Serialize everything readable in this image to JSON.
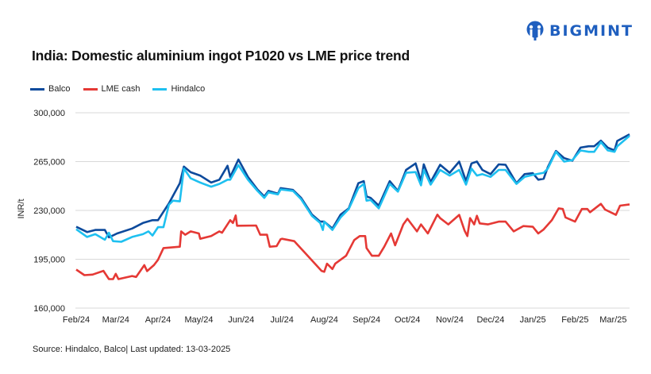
{
  "brand": {
    "name": "BIGMINT",
    "color": "#1f5fbf"
  },
  "title": "India: Domestic aluminium ingot P1020 vs LME price trend",
  "source": "Source: Hindalco, Balco| Last updated: 13-03-2025",
  "chart_data": {
    "type": "line",
    "title": "India: Domestic aluminium ingot P1020 vs LME price trend",
    "xlabel": "",
    "ylabel": "INR/t",
    "ylim": [
      160000,
      300000
    ],
    "yticks": [
      "300,000",
      "265,000",
      "230,000",
      "195,000",
      "160,000"
    ],
    "ytick_values": [
      300000,
      265000,
      230000,
      195000,
      160000
    ],
    "xlim": [
      "2024-02-01",
      "2025-03-13"
    ],
    "xticks": [
      "Feb/24",
      "Mar/24",
      "Apr/24",
      "May/24",
      "Jun/24",
      "Jul/24",
      "Aug/24",
      "Sep/24",
      "Oct/24",
      "Nov/24",
      "Dec/24",
      "Jan/25",
      "Feb/25",
      "Mar/25"
    ],
    "xtick_dates": [
      "2024-02-01",
      "2024-03-01",
      "2024-04-01",
      "2024-05-01",
      "2024-06-01",
      "2024-07-01",
      "2024-08-01",
      "2024-09-01",
      "2024-10-01",
      "2024-11-01",
      "2024-12-01",
      "2025-01-01",
      "2025-02-01",
      "2025-03-01"
    ],
    "grid": "horizontal",
    "legend_position": "top-left",
    "series": [
      {
        "name": "Balco",
        "color": "#0d4a9c",
        "points": [
          [
            "2024-02-01",
            218300
          ],
          [
            "2024-02-09",
            214500
          ],
          [
            "2024-02-15",
            216000
          ],
          [
            "2024-02-22",
            216000
          ],
          [
            "2024-02-25",
            210700
          ],
          [
            "2024-03-02",
            213500
          ],
          [
            "2024-03-13",
            217000
          ],
          [
            "2024-03-21",
            221000
          ],
          [
            "2024-03-28",
            223000
          ],
          [
            "2024-04-01",
            223000
          ],
          [
            "2024-04-09",
            235000
          ],
          [
            "2024-04-17",
            249500
          ],
          [
            "2024-04-20",
            261400
          ],
          [
            "2024-04-25",
            257400
          ],
          [
            "2024-05-02",
            255000
          ],
          [
            "2024-05-10",
            250000
          ],
          [
            "2024-05-16",
            252000
          ],
          [
            "2024-05-22",
            262000
          ],
          [
            "2024-05-24",
            254000
          ],
          [
            "2024-05-30",
            266500
          ],
          [
            "2024-06-06",
            254000
          ],
          [
            "2024-06-13",
            245000
          ],
          [
            "2024-06-18",
            240000
          ],
          [
            "2024-06-21",
            244000
          ],
          [
            "2024-06-28",
            242000
          ],
          [
            "2024-06-30",
            246000
          ],
          [
            "2024-07-09",
            244700
          ],
          [
            "2024-07-15",
            239000
          ],
          [
            "2024-07-23",
            227000
          ],
          [
            "2024-07-29",
            222000
          ],
          [
            "2024-08-01",
            222000
          ],
          [
            "2024-08-07",
            217000
          ],
          [
            "2024-08-13",
            227000
          ],
          [
            "2024-08-19",
            231500
          ],
          [
            "2024-08-26",
            249500
          ],
          [
            "2024-08-30",
            251000
          ],
          [
            "2024-09-01",
            240000
          ],
          [
            "2024-09-04",
            239000
          ],
          [
            "2024-09-10",
            233400
          ],
          [
            "2024-09-18",
            251000
          ],
          [
            "2024-09-24",
            244000
          ],
          [
            "2024-09-30",
            259000
          ],
          [
            "2024-10-07",
            263700
          ],
          [
            "2024-10-11",
            251000
          ],
          [
            "2024-10-13",
            263000
          ],
          [
            "2024-10-18",
            250400
          ],
          [
            "2024-10-25",
            262700
          ],
          [
            "2024-11-01",
            257000
          ],
          [
            "2024-11-08",
            265000
          ],
          [
            "2024-11-13",
            251000
          ],
          [
            "2024-11-17",
            263700
          ],
          [
            "2024-11-21",
            265000
          ],
          [
            "2024-11-25",
            259000
          ],
          [
            "2024-12-01",
            256000
          ],
          [
            "2024-12-07",
            263000
          ],
          [
            "2024-12-12",
            262700
          ],
          [
            "2024-12-20",
            249500
          ],
          [
            "2024-12-26",
            256000
          ],
          [
            "2025-01-01",
            256700
          ],
          [
            "2025-01-05",
            252000
          ],
          [
            "2025-01-09",
            252700
          ],
          [
            "2025-01-12",
            261000
          ],
          [
            "2025-01-18",
            272600
          ],
          [
            "2025-01-24",
            267500
          ],
          [
            "2025-01-30",
            265600
          ],
          [
            "2025-02-05",
            275000
          ],
          [
            "2025-02-11",
            276000
          ],
          [
            "2025-02-15",
            276000
          ],
          [
            "2025-02-20",
            280000
          ],
          [
            "2025-02-25",
            275000
          ],
          [
            "2025-03-02",
            273000
          ],
          [
            "2025-03-04",
            279800
          ],
          [
            "2025-03-13",
            284500
          ]
        ]
      },
      {
        "name": "LME cash",
        "color": "#e53935",
        "points": [
          [
            "2024-02-01",
            187600
          ],
          [
            "2024-02-07",
            183600
          ],
          [
            "2024-02-13",
            184000
          ],
          [
            "2024-02-21",
            186700
          ],
          [
            "2024-02-25",
            180800
          ],
          [
            "2024-02-28",
            180800
          ],
          [
            "2024-03-01",
            184600
          ],
          [
            "2024-03-03",
            180800
          ],
          [
            "2024-03-13",
            183000
          ],
          [
            "2024-03-16",
            182300
          ],
          [
            "2024-03-22",
            190800
          ],
          [
            "2024-03-24",
            186500
          ],
          [
            "2024-03-29",
            190800
          ],
          [
            "2024-04-01",
            194600
          ],
          [
            "2024-04-05",
            203000
          ],
          [
            "2024-04-17",
            204000
          ],
          [
            "2024-04-18",
            215000
          ],
          [
            "2024-04-21",
            212600
          ],
          [
            "2024-04-25",
            215000
          ],
          [
            "2024-05-01",
            213500
          ],
          [
            "2024-05-02",
            209700
          ],
          [
            "2024-05-10",
            211600
          ],
          [
            "2024-05-16",
            215000
          ],
          [
            "2024-05-18",
            214000
          ],
          [
            "2024-05-24",
            223000
          ],
          [
            "2024-05-26",
            221000
          ],
          [
            "2024-05-28",
            226400
          ],
          [
            "2024-05-29",
            219000
          ],
          [
            "2024-06-12",
            219200
          ],
          [
            "2024-06-15",
            212600
          ],
          [
            "2024-06-20",
            212600
          ],
          [
            "2024-06-22",
            204000
          ],
          [
            "2024-06-27",
            204400
          ],
          [
            "2024-06-30",
            209400
          ],
          [
            "2024-07-01",
            209700
          ],
          [
            "2024-07-10",
            208000
          ],
          [
            "2024-07-15",
            202600
          ],
          [
            "2024-07-19",
            198400
          ],
          [
            "2024-07-30",
            186700
          ],
          [
            "2024-08-01",
            186000
          ],
          [
            "2024-08-03",
            191800
          ],
          [
            "2024-08-07",
            188000
          ],
          [
            "2024-08-09",
            191800
          ],
          [
            "2024-08-17",
            197500
          ],
          [
            "2024-08-23",
            208800
          ],
          [
            "2024-08-27",
            211600
          ],
          [
            "2024-08-31",
            211600
          ],
          [
            "2024-09-01",
            203000
          ],
          [
            "2024-09-05",
            197500
          ],
          [
            "2024-09-10",
            197500
          ],
          [
            "2024-09-14",
            204000
          ],
          [
            "2024-09-19",
            213500
          ],
          [
            "2024-09-22",
            205000
          ],
          [
            "2024-09-28",
            220000
          ],
          [
            "2024-10-01",
            224000
          ],
          [
            "2024-10-08",
            215000
          ],
          [
            "2024-10-11",
            220000
          ],
          [
            "2024-10-16",
            213500
          ],
          [
            "2024-10-23",
            227000
          ],
          [
            "2024-10-25",
            224500
          ],
          [
            "2024-10-31",
            220000
          ],
          [
            "2024-11-08",
            226800
          ],
          [
            "2024-11-12",
            215400
          ],
          [
            "2024-11-14",
            211600
          ],
          [
            "2024-11-16",
            224500
          ],
          [
            "2024-11-19",
            220000
          ],
          [
            "2024-11-21",
            226200
          ],
          [
            "2024-11-23",
            220700
          ],
          [
            "2024-11-29",
            220000
          ],
          [
            "2024-12-07",
            222000
          ],
          [
            "2024-12-12",
            222000
          ],
          [
            "2024-12-18",
            215000
          ],
          [
            "2024-12-25",
            218800
          ],
          [
            "2025-01-01",
            218300
          ],
          [
            "2025-01-05",
            213500
          ],
          [
            "2025-01-09",
            216400
          ],
          [
            "2025-01-15",
            223000
          ],
          [
            "2025-01-20",
            231500
          ],
          [
            "2025-01-23",
            231000
          ],
          [
            "2025-01-25",
            225000
          ],
          [
            "2025-02-01",
            222000
          ],
          [
            "2025-02-06",
            231000
          ],
          [
            "2025-02-10",
            231000
          ],
          [
            "2025-02-12",
            228700
          ],
          [
            "2025-02-20",
            234700
          ],
          [
            "2025-02-23",
            230600
          ],
          [
            "2025-03-03",
            226800
          ],
          [
            "2025-03-06",
            233400
          ],
          [
            "2025-03-13",
            234300
          ]
        ]
      },
      {
        "name": "Hindalco",
        "color": "#1ec0f0",
        "points": [
          [
            "2024-02-01",
            216500
          ],
          [
            "2024-02-09",
            211000
          ],
          [
            "2024-02-15",
            213000
          ],
          [
            "2024-02-22",
            209000
          ],
          [
            "2024-02-25",
            214000
          ],
          [
            "2024-02-28",
            208000
          ],
          [
            "2024-03-05",
            207500
          ],
          [
            "2024-03-13",
            211000
          ],
          [
            "2024-03-21",
            213000
          ],
          [
            "2024-03-25",
            215000
          ],
          [
            "2024-03-28",
            212000
          ],
          [
            "2024-04-01",
            218000
          ],
          [
            "2024-04-05",
            218000
          ],
          [
            "2024-04-09",
            234000
          ],
          [
            "2024-04-12",
            237000
          ],
          [
            "2024-04-17",
            236500
          ],
          [
            "2024-04-20",
            260000
          ],
          [
            "2024-04-25",
            253000
          ],
          [
            "2024-05-02",
            250000
          ],
          [
            "2024-05-10",
            247000
          ],
          [
            "2024-05-16",
            249000
          ],
          [
            "2024-05-22",
            252000
          ],
          [
            "2024-05-24",
            252000
          ],
          [
            "2024-05-30",
            262500
          ],
          [
            "2024-06-06",
            252000
          ],
          [
            "2024-06-13",
            244000
          ],
          [
            "2024-06-18",
            239000
          ],
          [
            "2024-06-21",
            243000
          ],
          [
            "2024-06-28",
            241500
          ],
          [
            "2024-06-30",
            245000
          ],
          [
            "2024-07-09",
            244000
          ],
          [
            "2024-07-15",
            238000
          ],
          [
            "2024-07-23",
            226000
          ],
          [
            "2024-07-29",
            221000
          ],
          [
            "2024-07-31",
            216000
          ],
          [
            "2024-08-01",
            222000
          ],
          [
            "2024-08-07",
            216000
          ],
          [
            "2024-08-13",
            225000
          ],
          [
            "2024-08-19",
            231000
          ],
          [
            "2024-08-26",
            246000
          ],
          [
            "2024-08-30",
            249000
          ],
          [
            "2024-09-01",
            237000
          ],
          [
            "2024-09-04",
            237500
          ],
          [
            "2024-09-10",
            231500
          ],
          [
            "2024-09-18",
            249000
          ],
          [
            "2024-09-24",
            243500
          ],
          [
            "2024-09-30",
            257000
          ],
          [
            "2024-10-07",
            257500
          ],
          [
            "2024-10-11",
            248000
          ],
          [
            "2024-10-13",
            259000
          ],
          [
            "2024-10-18",
            248500
          ],
          [
            "2024-10-25",
            259000
          ],
          [
            "2024-11-01",
            255000
          ],
          [
            "2024-11-08",
            259000
          ],
          [
            "2024-11-13",
            248500
          ],
          [
            "2024-11-17",
            260000
          ],
          [
            "2024-11-21",
            255000
          ],
          [
            "2024-11-25",
            256000
          ],
          [
            "2024-12-01",
            254000
          ],
          [
            "2024-12-07",
            259000
          ],
          [
            "2024-12-12",
            259000
          ],
          [
            "2024-12-20",
            249000
          ],
          [
            "2024-12-26",
            254000
          ],
          [
            "2025-01-01",
            255500
          ],
          [
            "2025-01-09",
            257000
          ],
          [
            "2025-01-12",
            260000
          ],
          [
            "2025-01-18",
            272000
          ],
          [
            "2025-01-24",
            265000
          ],
          [
            "2025-01-30",
            266000
          ],
          [
            "2025-02-05",
            273000
          ],
          [
            "2025-02-11",
            272000
          ],
          [
            "2025-02-15",
            272000
          ],
          [
            "2025-02-20",
            279000
          ],
          [
            "2025-02-25",
            273000
          ],
          [
            "2025-03-02",
            272000
          ],
          [
            "2025-03-04",
            276000
          ],
          [
            "2025-03-13",
            283500
          ]
        ]
      }
    ]
  }
}
